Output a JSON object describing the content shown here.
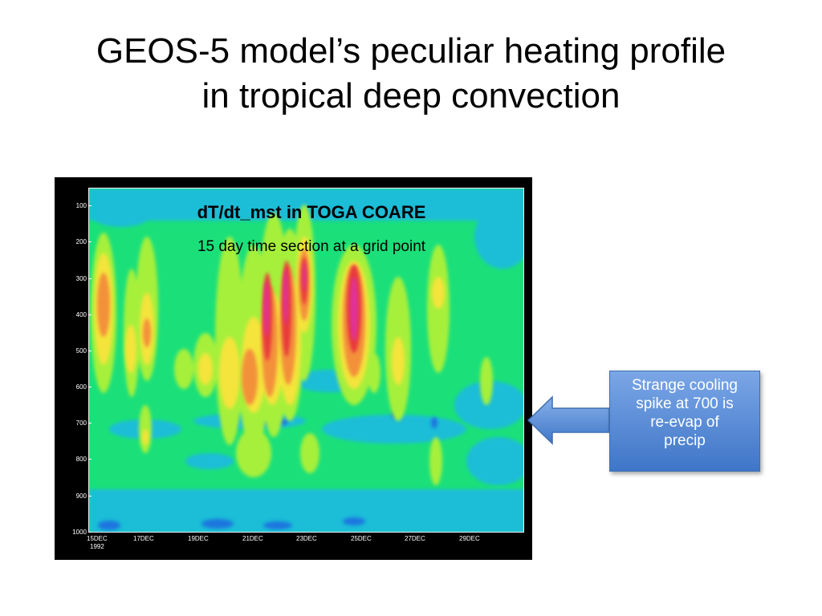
{
  "slide": {
    "title_line1": "GEOS-5 model’s peculiar heating profile",
    "title_line2": "in tropical deep convection"
  },
  "figure": {
    "title": "dT/dt_mst in TOGA COARE",
    "subtitle": "15 day time section at a grid point",
    "y_ticks": [
      "100",
      "200",
      "300",
      "400",
      "500",
      "600",
      "700",
      "800",
      "900",
      "1000"
    ],
    "x_ticks": [
      "15DEC",
      "17DEC",
      "19DEC",
      "21DEC",
      "23DEC",
      "25DEC",
      "27DEC",
      "29DEC"
    ],
    "x_year": "1992",
    "colors": {
      "background": "#1be07a",
      "cool": "#1ab8e8",
      "cooler": "#1f6ee0",
      "warm_light": "#a6f03a",
      "warm": "#f4e43a",
      "hot": "#f3913a",
      "hotter": "#e83a3a",
      "hottest": "#e0309a"
    }
  },
  "callout": {
    "text_lines": [
      "Strange cooling",
      "spike at 700 is",
      "re-evap of",
      "precip"
    ],
    "color": "#4f84d4"
  }
}
